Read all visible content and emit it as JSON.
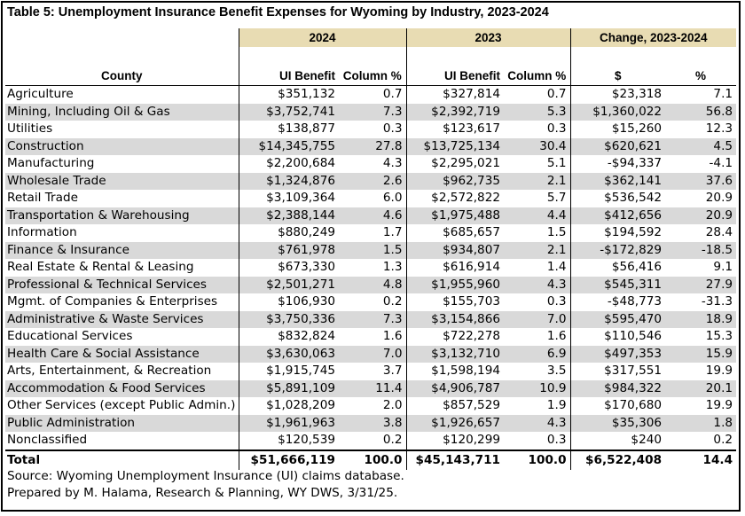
{
  "title": "Table 5: Unemployment Insurance Benefit Expenses for Wyoming by Industry, 2023-2024",
  "headers": {
    "group_2024": "2024",
    "group_2023": "2023",
    "group_change": "Change, 2023-2024",
    "county": "County",
    "ui_benefit_2024": "UI Benefit",
    "column_pct_2024": "Column %",
    "ui_benefit_2023": "UI Benefit",
    "column_pct_2023": "Column %",
    "change_dollars": "$",
    "change_pct": "%"
  },
  "rows": [
    {
      "industry": "Agriculture",
      "ui_2024": "$351,132",
      "pct_2024": "0.7",
      "ui_2023": "$327,814",
      "pct_2023": "0.7",
      "chg": "$23,318",
      "chg_pct": "7.1"
    },
    {
      "industry": "Mining, Including Oil & Gas",
      "ui_2024": "$3,752,741",
      "pct_2024": "7.3",
      "ui_2023": "$2,392,719",
      "pct_2023": "5.3",
      "chg": "$1,360,022",
      "chg_pct": "56.8"
    },
    {
      "industry": "Utilities",
      "ui_2024": "$138,877",
      "pct_2024": "0.3",
      "ui_2023": "$123,617",
      "pct_2023": "0.3",
      "chg": "$15,260",
      "chg_pct": "12.3"
    },
    {
      "industry": "Construction",
      "ui_2024": "$14,345,755",
      "pct_2024": "27.8",
      "ui_2023": "$13,725,134",
      "pct_2023": "30.4",
      "chg": "$620,621",
      "chg_pct": "4.5"
    },
    {
      "industry": "Manufacturing",
      "ui_2024": "$2,200,684",
      "pct_2024": "4.3",
      "ui_2023": "$2,295,021",
      "pct_2023": "5.1",
      "chg": "-$94,337",
      "chg_pct": "-4.1"
    },
    {
      "industry": "Wholesale Trade",
      "ui_2024": "$1,324,876",
      "pct_2024": "2.6",
      "ui_2023": "$962,735",
      "pct_2023": "2.1",
      "chg": "$362,141",
      "chg_pct": "37.6"
    },
    {
      "industry": "Retail Trade",
      "ui_2024": "$3,109,364",
      "pct_2024": "6.0",
      "ui_2023": "$2,572,822",
      "pct_2023": "5.7",
      "chg": "$536,542",
      "chg_pct": "20.9"
    },
    {
      "industry": "Transportation & Warehousing",
      "ui_2024": "$2,388,144",
      "pct_2024": "4.6",
      "ui_2023": "$1,975,488",
      "pct_2023": "4.4",
      "chg": "$412,656",
      "chg_pct": "20.9"
    },
    {
      "industry": "Information",
      "ui_2024": "$880,249",
      "pct_2024": "1.7",
      "ui_2023": "$685,657",
      "pct_2023": "1.5",
      "chg": "$194,592",
      "chg_pct": "28.4"
    },
    {
      "industry": "Finance & Insurance",
      "ui_2024": "$761,978",
      "pct_2024": "1.5",
      "ui_2023": "$934,807",
      "pct_2023": "2.1",
      "chg": "-$172,829",
      "chg_pct": "-18.5"
    },
    {
      "industry": "Real Estate & Rental & Leasing",
      "ui_2024": "$673,330",
      "pct_2024": "1.3",
      "ui_2023": "$616,914",
      "pct_2023": "1.4",
      "chg": "$56,416",
      "chg_pct": "9.1"
    },
    {
      "industry": "Professional & Technical Services",
      "ui_2024": "$2,501,271",
      "pct_2024": "4.8",
      "ui_2023": "$1,955,960",
      "pct_2023": "4.3",
      "chg": "$545,311",
      "chg_pct": "27.9"
    },
    {
      "industry": "Mgmt. of Companies & Enterprises",
      "ui_2024": "$106,930",
      "pct_2024": "0.2",
      "ui_2023": "$155,703",
      "pct_2023": "0.3",
      "chg": "-$48,773",
      "chg_pct": "-31.3"
    },
    {
      "industry": "Administrative & Waste Services",
      "ui_2024": "$3,750,336",
      "pct_2024": "7.3",
      "ui_2023": "$3,154,866",
      "pct_2023": "7.0",
      "chg": "$595,470",
      "chg_pct": "18.9"
    },
    {
      "industry": "Educational Services",
      "ui_2024": "$832,824",
      "pct_2024": "1.6",
      "ui_2023": "$722,278",
      "pct_2023": "1.6",
      "chg": "$110,546",
      "chg_pct": "15.3"
    },
    {
      "industry": "Health Care & Social Assistance",
      "ui_2024": "$3,630,063",
      "pct_2024": "7.0",
      "ui_2023": "$3,132,710",
      "pct_2023": "6.9",
      "chg": "$497,353",
      "chg_pct": "15.9"
    },
    {
      "industry": "Arts, Entertainment, & Recreation",
      "ui_2024": "$1,915,745",
      "pct_2024": "3.7",
      "ui_2023": "$1,598,194",
      "pct_2023": "3.5",
      "chg": "$317,551",
      "chg_pct": "19.9"
    },
    {
      "industry": "Accommodation & Food Services",
      "ui_2024": "$5,891,109",
      "pct_2024": "11.4",
      "ui_2023": "$4,906,787",
      "pct_2023": "10.9",
      "chg": "$984,322",
      "chg_pct": "20.1"
    },
    {
      "industry": "Other Services (except Public Admin.)",
      "ui_2024": "$1,028,209",
      "pct_2024": "2.0",
      "ui_2023": "$857,529",
      "pct_2023": "1.9",
      "chg": "$170,680",
      "chg_pct": "19.9"
    },
    {
      "industry": "Public Administration",
      "ui_2024": "$1,961,963",
      "pct_2024": "3.8",
      "ui_2023": "$1,926,657",
      "pct_2023": "4.3",
      "chg": "$35,306",
      "chg_pct": "1.8"
    },
    {
      "industry": "Nonclassified",
      "ui_2024": "$120,539",
      "pct_2024": "0.2",
      "ui_2023": "$120,299",
      "pct_2023": "0.3",
      "chg": "$240",
      "chg_pct": "0.2"
    }
  ],
  "total": {
    "industry": "Total",
    "ui_2024": "$51,666,119",
    "pct_2024": "100.0",
    "ui_2023": "$45,143,711",
    "pct_2023": "100.0",
    "chg": "$6,522,408",
    "chg_pct": "14.4"
  },
  "source_lines": [
    "Source: Wyoming Unemployment Insurance (UI) claims database.",
    "Prepared by M. Halama, Research & Planning, WY DWS, 3/31/25."
  ],
  "colors": {
    "header_band": "#e8dcb3",
    "row_shade": "#d9d9d9",
    "border": "#000000"
  }
}
